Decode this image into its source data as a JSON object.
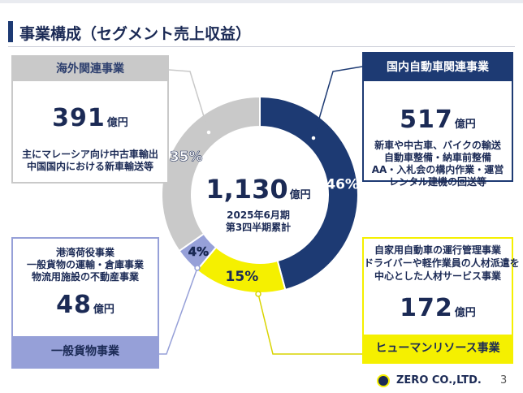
{
  "page": {
    "title": "事業構成（セグメント売上収益）",
    "page_number": "3"
  },
  "colors": {
    "domestic": "#1d3a73",
    "hr": "#f5f000",
    "cargo": "#96a0d8",
    "overseas": "#c9c9c9"
  },
  "center": {
    "amount": "1,130",
    "unit": "億円",
    "line1": "2025年6月期",
    "line2": "第3四半期累計"
  },
  "segments": {
    "overseas": {
      "name": "海外関連事業",
      "amount": "391",
      "unit": "億円",
      "lines": [
        "主にマレーシア向け中古車輸出",
        "中国国内における新車輸送等"
      ]
    },
    "domestic": {
      "name": "国内自動車関連事業",
      "amount": "517",
      "unit": "億円",
      "lines": [
        "新車や中古車、バイクの輸送",
        "自動車整備・納車前整備",
        "AA・入札会の構内作業・運営",
        "レンタル建機の回送等"
      ]
    },
    "cargo": {
      "name": "一般貨物事業",
      "amount": "48",
      "unit": "億円",
      "lines": [
        "港湾荷役事業",
        "一般貨物の運輸・倉庫事業",
        "物流用施設の不動産事業"
      ]
    },
    "hr": {
      "name": "ヒューマンリソース事業",
      "amount": "172",
      "unit": "億円",
      "lines": [
        "自家用自動車の運行管理事業",
        "ドライバーや軽作業員の人材派遣を",
        "中心とした人材サービス事業"
      ]
    }
  },
  "chart_data": {
    "type": "pie",
    "title": "",
    "total": 1130,
    "unit": "億円",
    "slices": [
      {
        "name": "国内自動車関連事業",
        "value": 517,
        "percent_label": "46%",
        "color": "#1d3a73"
      },
      {
        "name": "ヒューマンリソース事業",
        "value": 172,
        "percent_label": "15%",
        "color": "#f5f000"
      },
      {
        "name": "一般貨物事業",
        "value": 48,
        "percent_label": "4%",
        "color": "#96a0d8"
      },
      {
        "name": "海外関連事業",
        "value": 391,
        "percent_label": "35%",
        "color": "#c9c9c9"
      }
    ]
  },
  "footer": {
    "company": "ZERO CO.,LTD."
  }
}
